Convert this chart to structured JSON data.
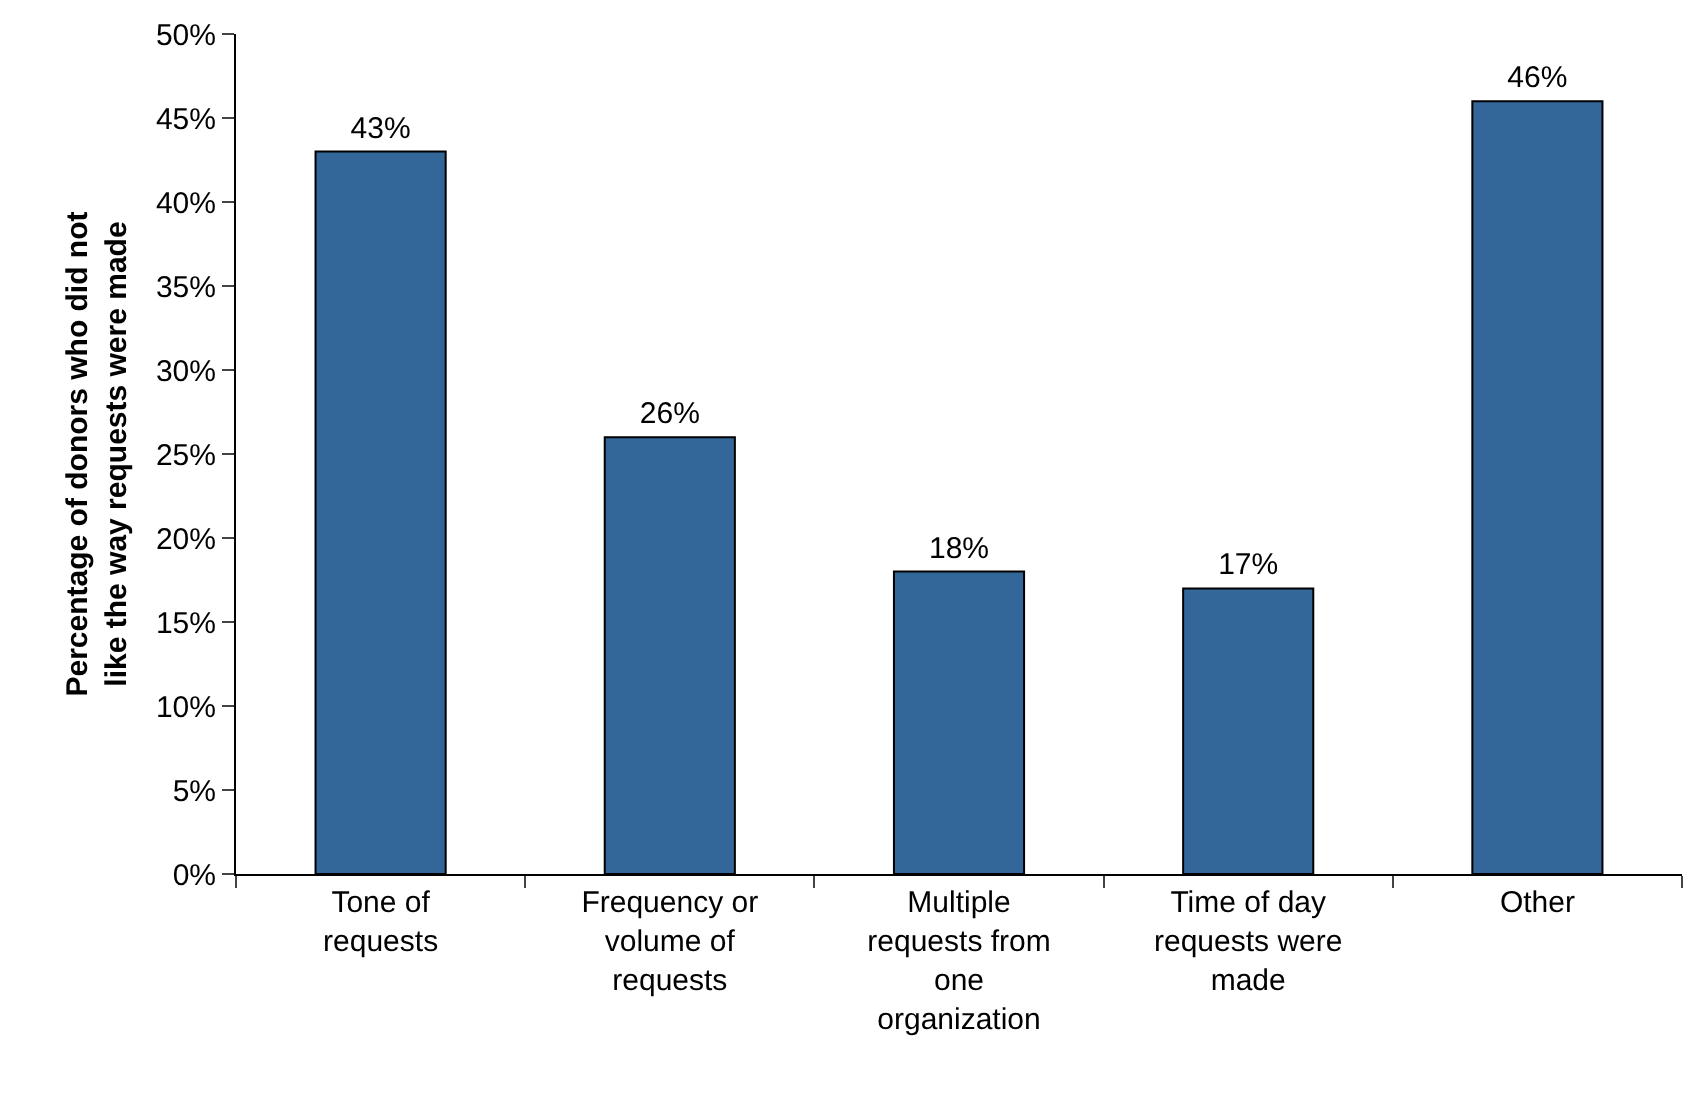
{
  "chart_data": {
    "type": "bar",
    "ylabel": "Percentage of donors who did not like the way requests were made",
    "categories": [
      "Tone of requests",
      "Frequency or volume of requests",
      "Multiple requests from one organization",
      "Time of day requests were made",
      "Other"
    ],
    "values": [
      43,
      26,
      18,
      17,
      46
    ],
    "value_labels": [
      "43%",
      "26%",
      "18%",
      "17%",
      "46%"
    ],
    "color": "#336699",
    "ylim": [
      0,
      50
    ],
    "yticks": [
      {
        "value": 0,
        "label": "0%"
      },
      {
        "value": 5,
        "label": "5%"
      },
      {
        "value": 10,
        "label": "10%"
      },
      {
        "value": 15,
        "label": "15%"
      },
      {
        "value": 20,
        "label": "20%"
      },
      {
        "value": 25,
        "label": "25%"
      },
      {
        "value": 30,
        "label": "30%"
      },
      {
        "value": 35,
        "label": "35%"
      },
      {
        "value": 40,
        "label": "40%"
      },
      {
        "value": 45,
        "label": "45%"
      },
      {
        "value": 50,
        "label": "50%"
      }
    ],
    "grid": false
  }
}
